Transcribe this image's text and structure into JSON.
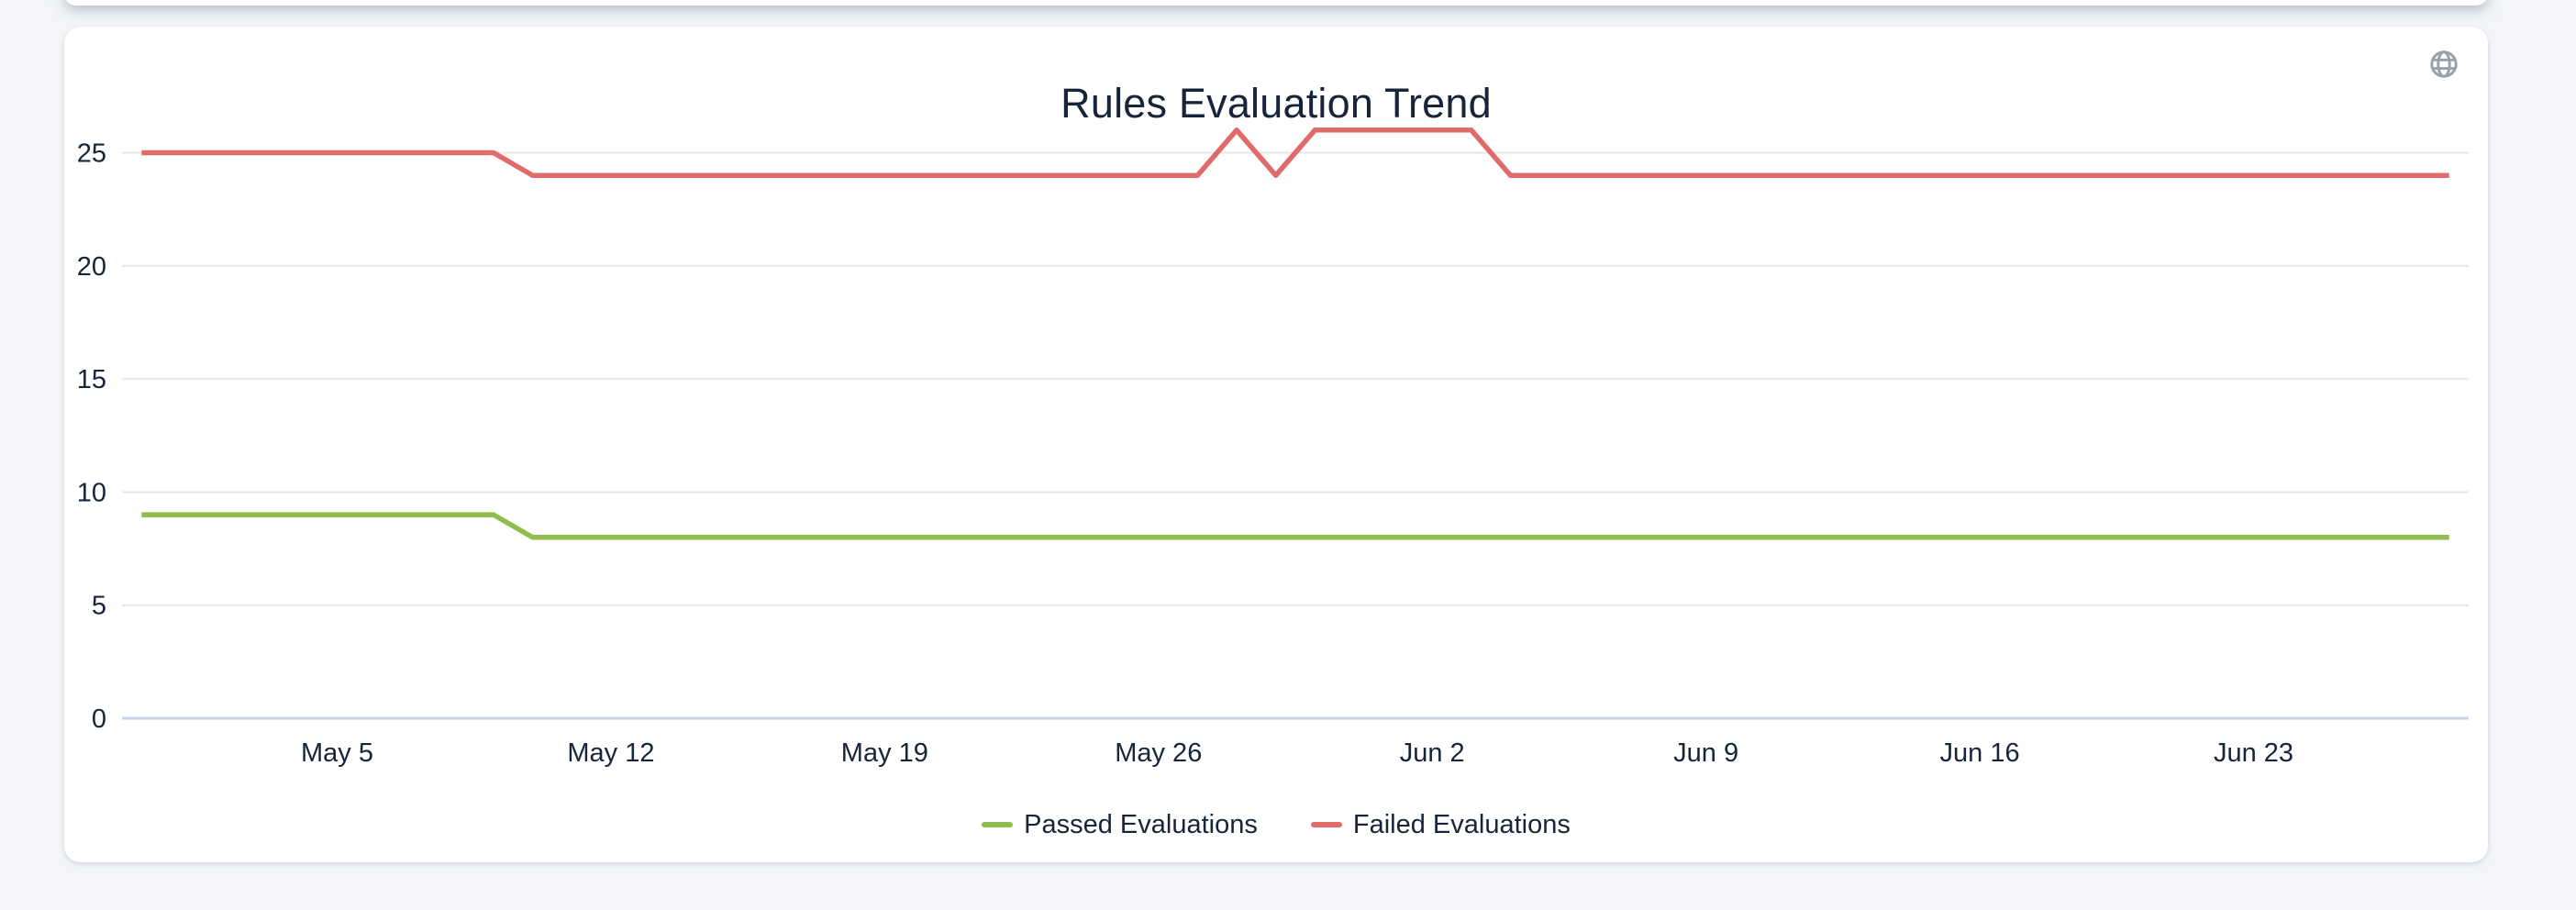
{
  "card": {
    "title": "Rules Evaluation Trend"
  },
  "icons": {
    "globe_color": "#9aa2ac"
  },
  "colors": {
    "page_background": "#f3f5f9",
    "card_background": "#ffffff",
    "text": "#17243a",
    "grid_line": "#e7e7e7",
    "axis_base_line": "#c9d4ea"
  },
  "chart_data": {
    "type": "line",
    "title": "Rules Evaluation Trend",
    "x": [
      "Apr 30",
      "May 1",
      "May 2",
      "May 3",
      "May 4",
      "May 5",
      "May 6",
      "May 7",
      "May 8",
      "May 9",
      "May 10",
      "May 11",
      "May 12",
      "May 13",
      "May 14",
      "May 15",
      "May 16",
      "May 17",
      "May 18",
      "May 19",
      "May 20",
      "May 21",
      "May 22",
      "May 23",
      "May 24",
      "May 25",
      "May 26",
      "May 27",
      "May 28",
      "May 29",
      "May 30",
      "May 31",
      "Jun 1",
      "Jun 2",
      "Jun 3",
      "Jun 4",
      "Jun 5",
      "Jun 6",
      "Jun 7",
      "Jun 8",
      "Jun 9",
      "Jun 10",
      "Jun 11",
      "Jun 12",
      "Jun 13",
      "Jun 14",
      "Jun 15",
      "Jun 16",
      "Jun 17",
      "Jun 18",
      "Jun 19",
      "Jun 20",
      "Jun 21",
      "Jun 22",
      "Jun 23",
      "Jun 24",
      "Jun 25",
      "Jun 26",
      "Jun 27",
      "Jun 28"
    ],
    "series": [
      {
        "name": "Passed Evaluations",
        "color": "#8fbe4d",
        "values": [
          9,
          9,
          9,
          9,
          9,
          9,
          9,
          9,
          9,
          9,
          8,
          8,
          8,
          8,
          8,
          8,
          8,
          8,
          8,
          8,
          8,
          8,
          8,
          8,
          8,
          8,
          8,
          8,
          8,
          8,
          8,
          8,
          8,
          8,
          8,
          8,
          8,
          8,
          8,
          8,
          8,
          8,
          8,
          8,
          8,
          8,
          8,
          8,
          8,
          8,
          8,
          8,
          8,
          8,
          8,
          8,
          8,
          8,
          8,
          8
        ]
      },
      {
        "name": "Failed Evaluations",
        "color": "#e16a6a",
        "values": [
          25,
          25,
          25,
          25,
          25,
          25,
          25,
          25,
          25,
          25,
          24,
          24,
          24,
          24,
          24,
          24,
          24,
          24,
          24,
          24,
          24,
          24,
          24,
          24,
          24,
          24,
          24,
          24,
          26,
          24,
          26,
          26,
          26,
          26,
          26,
          24,
          24,
          24,
          24,
          24,
          24,
          24,
          24,
          24,
          24,
          24,
          24,
          24,
          24,
          24,
          24,
          24,
          24,
          24,
          24,
          24,
          24,
          24,
          24,
          24
        ]
      }
    ],
    "xticks": [
      {
        "index": 5,
        "label": "May 5"
      },
      {
        "index": 12,
        "label": "May 12"
      },
      {
        "index": 19,
        "label": "May 19"
      },
      {
        "index": 26,
        "label": "May 26"
      },
      {
        "index": 33,
        "label": "Jun 2"
      },
      {
        "index": 40,
        "label": "Jun 9"
      },
      {
        "index": 47,
        "label": "Jun 16"
      },
      {
        "index": 54,
        "label": "Jun 23"
      }
    ],
    "yticks": [
      0,
      5,
      10,
      15,
      20,
      25
    ],
    "ylim": [
      0,
      26.5
    ],
    "grid": true,
    "vertical_grid": false,
    "markers": false,
    "legend_position": "bottom"
  },
  "legend": {
    "items": [
      {
        "label": "Passed Evaluations",
        "color": "#8fbe4d"
      },
      {
        "label": "Failed Evaluations",
        "color": "#e16a6a"
      }
    ]
  }
}
